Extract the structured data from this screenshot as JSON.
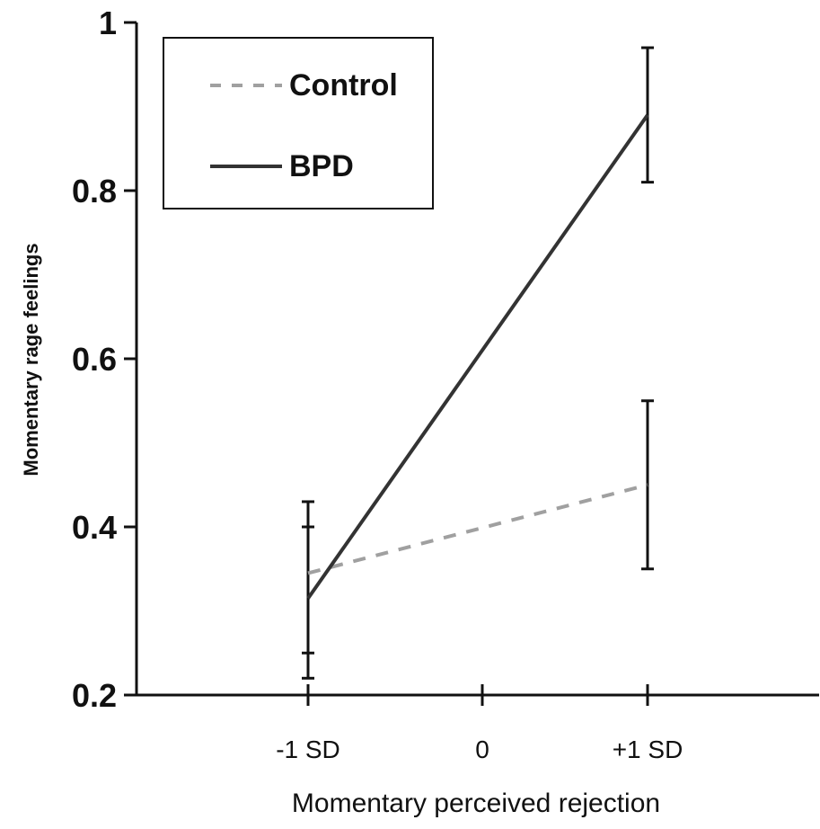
{
  "chart_data": {
    "type": "line",
    "xlabel": "Momentary perceived rejection",
    "ylabel": "Momentary rage feelings",
    "categories": [
      "-1 SD",
      "0",
      "+1 SD"
    ],
    "x": [
      -1,
      1
    ],
    "ylim": [
      0.2,
      1.0
    ],
    "yticks": [
      "0.2",
      "0.4",
      "0.6",
      "0.8",
      "1"
    ],
    "ytick_values": [
      0.2,
      0.4,
      0.6,
      0.8,
      1.0
    ],
    "legend_position": "top-left",
    "grid": false,
    "series": [
      {
        "name": "Control",
        "style": "dashed",
        "color": "#a0a0a0",
        "values": [
          0.345,
          0.45
        ],
        "error_bars": [
          [
            0.25,
            0.43
          ],
          [
            0.35,
            0.55
          ]
        ]
      },
      {
        "name": "BPD",
        "style": "solid",
        "color": "#333333",
        "values": [
          0.315,
          0.89
        ],
        "error_bars": [
          [
            0.22,
            0.4
          ],
          [
            0.81,
            0.97
          ]
        ]
      }
    ]
  }
}
